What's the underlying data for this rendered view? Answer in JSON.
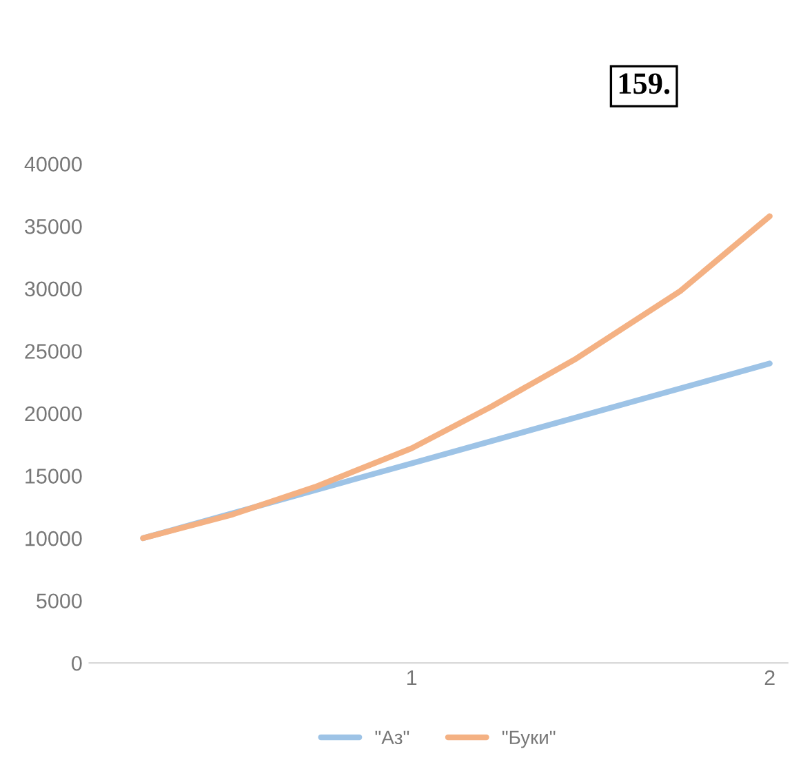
{
  "chart_data": {
    "type": "line",
    "annotations": [
      "159."
    ],
    "series": [
      {
        "name": "\"Аз\"",
        "color": "#9dc3e6",
        "x": [
          0.25,
          1,
          2
        ],
        "values": [
          10000,
          16000,
          24000
        ]
      },
      {
        "name": "\"Буки\"",
        "color": "#f4b183",
        "x": [
          0.25,
          0.5,
          0.73,
          1,
          1.22,
          1.46,
          1.75,
          2
        ],
        "values": [
          10000,
          11900,
          14100,
          17200,
          20500,
          24400,
          29800,
          35800
        ]
      }
    ],
    "xlim": [
      0.1,
      2.05
    ],
    "xticks": [
      1,
      2
    ],
    "ylim": [
      0,
      40000
    ],
    "yticks": [
      0,
      5000,
      10000,
      15000,
      20000,
      25000,
      30000,
      35000,
      40000
    ],
    "grid": false,
    "legend": "bottom",
    "marker": "none",
    "line_style": "solid"
  }
}
